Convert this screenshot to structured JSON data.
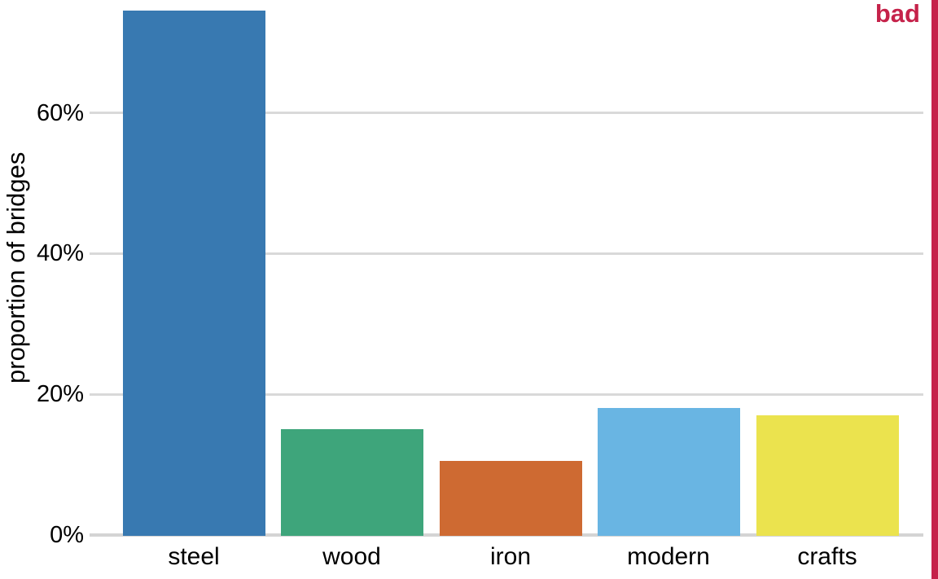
{
  "annotation": {
    "label": "bad",
    "color": "#C5224A"
  },
  "chart_data": {
    "type": "bar",
    "title": "",
    "xlabel": "",
    "ylabel": "proportion of bridges",
    "categories": [
      "steel",
      "wood",
      "iron",
      "modern",
      "crafts"
    ],
    "values": [
      74.5,
      15,
      10.5,
      18,
      17
    ],
    "unit": "percent",
    "bar_colors": [
      "#3879B1",
      "#3EA57B",
      "#CE6A32",
      "#69B5E3",
      "#EBE34E"
    ],
    "y_ticks": [
      {
        "value": 0,
        "label": "0%"
      },
      {
        "value": 20,
        "label": "20%"
      },
      {
        "value": 40,
        "label": "40%"
      },
      {
        "value": 60,
        "label": "60%"
      }
    ],
    "ylim": [
      0,
      76
    ],
    "grid": "horizontal",
    "legend": "none",
    "colors": {
      "gridline": "#D9D9D9",
      "baseline": "#D4D4D4",
      "text": "#000000"
    }
  }
}
